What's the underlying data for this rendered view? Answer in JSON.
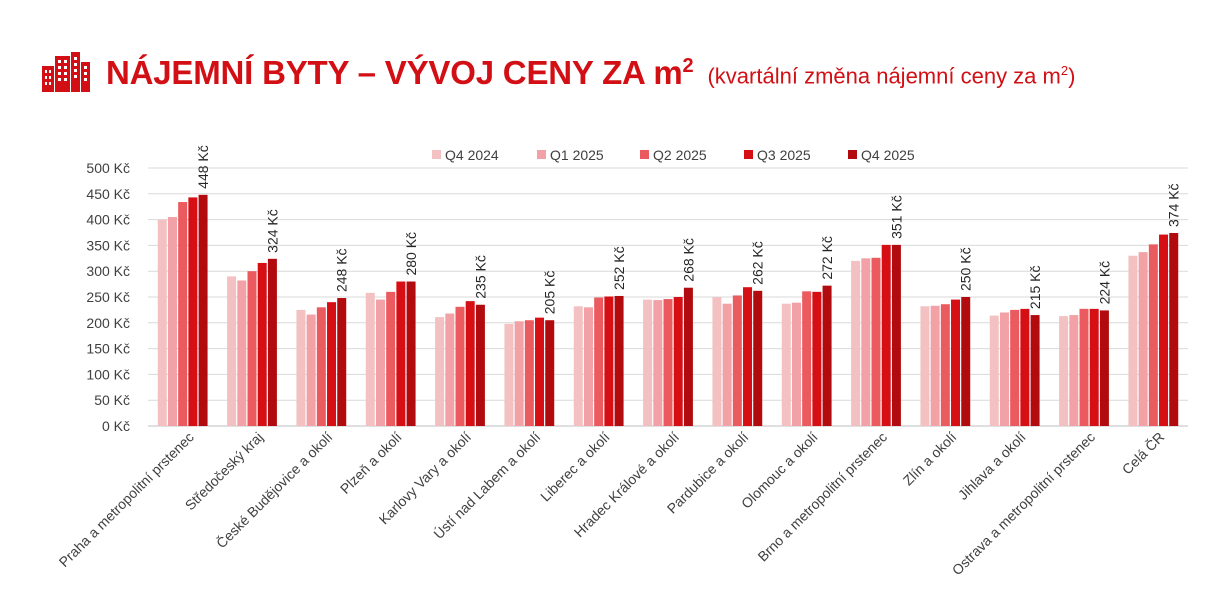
{
  "header": {
    "title_main": "NÁJEMNÍ BYTY – VÝVOJ CENY ZA m",
    "title_sup": "2",
    "subtitle_main": "(kvartální změna nájemní ceny za m",
    "subtitle_sup": "2",
    "subtitle_close": ")",
    "icon": "buildings-icon"
  },
  "colors": {
    "accent": "#d20f14",
    "series": [
      "#f3c1c1",
      "#f2a2a6",
      "#ea5a5e",
      "#d60f14",
      "#b10a0f"
    ]
  },
  "chart_data": {
    "type": "bar",
    "ylim": [
      0,
      500
    ],
    "yticks": [
      0,
      50,
      100,
      150,
      200,
      250,
      300,
      350,
      400,
      450,
      500
    ],
    "ytick_labels": [
      "0 Kč",
      "50 Kč",
      "100 Kč",
      "150 Kč",
      "200 Kč",
      "250 Kč",
      "300 Kč",
      "350 Kč",
      "400 Kč",
      "450 Kč",
      "500 Kč"
    ],
    "grid": true,
    "legend_position": "top",
    "categories": [
      "Praha a metropolitní prstenec",
      "Středočeský kraj",
      "České Budějovice a okolí",
      "Plzeň a okolí",
      "Karlovy Vary a okolí",
      "Ústí nad Labem a okolí",
      "Liberec a okolí",
      "Hradec Králové a okolí",
      "Pardubice a okolí",
      "Olomouc a okolí",
      "Brno a metropolitní prstenec",
      "Zlín a okolí",
      "Jihlava a okolí",
      "Ostrava a metropolitní prstenec",
      "Celá ČR"
    ],
    "series": [
      {
        "name": "Q4 2024",
        "values": [
          400,
          290,
          225,
          258,
          211,
          198,
          232,
          245,
          250,
          237,
          320,
          232,
          214,
          213,
          330
        ]
      },
      {
        "name": "Q1 2025",
        "values": [
          405,
          282,
          216,
          245,
          218,
          203,
          230,
          244,
          237,
          239,
          325,
          233,
          220,
          215,
          337
        ]
      },
      {
        "name": "Q2 2025",
        "values": [
          434,
          300,
          230,
          260,
          231,
          205,
          249,
          246,
          253,
          261,
          326,
          236,
          225,
          227,
          352
        ]
      },
      {
        "name": "Q3 2025",
        "values": [
          443,
          316,
          240,
          280,
          242,
          210,
          251,
          250,
          269,
          260,
          351,
          245,
          227,
          227,
          371
        ]
      },
      {
        "name": "Q4 2025",
        "values": [
          448,
          324,
          248,
          280,
          235,
          205,
          252,
          268,
          262,
          272,
          351,
          250,
          215,
          224,
          374
        ]
      }
    ],
    "data_labels": [
      "448 Kč",
      "324 Kč",
      "248 Kč",
      "280 Kč",
      "235 Kč",
      "205 Kč",
      "252 Kč",
      "268 Kč",
      "262 Kč",
      "272 Kč",
      "351 Kč",
      "250 Kč",
      "215 Kč",
      "224 Kč",
      "374 Kč"
    ]
  }
}
